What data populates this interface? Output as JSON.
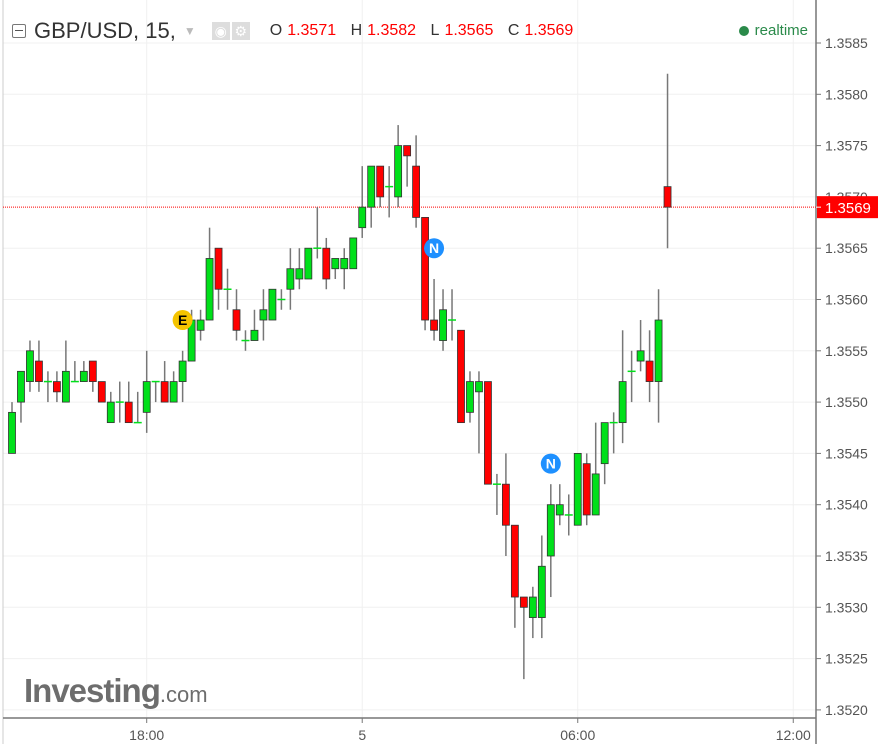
{
  "header": {
    "symbol": "GBP/USD, 15,",
    "o_label": "O",
    "o": "1.3571",
    "h_label": "H",
    "h": "1.3582",
    "l_label": "L",
    "l": "1.3565",
    "c_label": "C",
    "c": "1.3569",
    "status": "realtime"
  },
  "logo": {
    "name": "Investing",
    "suffix": ".com"
  },
  "colors": {
    "up": "#00e01a",
    "down": "#ff0000",
    "wick": "#777777",
    "current": "#ff0000",
    "status": "#2a8a4a"
  },
  "chart_data": {
    "type": "candlestick",
    "interval": "15",
    "ylim": [
      1.3519,
      1.3589
    ],
    "yticks": [
      "1.3520",
      "1.3525",
      "1.3530",
      "1.3535",
      "1.3540",
      "1.3545",
      "1.3550",
      "1.3555",
      "1.3560",
      "1.3565",
      "1.3570",
      "1.3575",
      "1.3580",
      "1.3585"
    ],
    "xticks": [
      {
        "label": "18:00",
        "t": "18:00"
      },
      {
        "label": "5",
        "t": "00:00"
      },
      {
        "label": "06:00",
        "t": "06:00"
      },
      {
        "label": "12:00",
        "t": "12:00"
      }
    ],
    "grid": true,
    "current_price": "1.3569",
    "markers": [
      {
        "label": "E",
        "t": "19:00",
        "price": 1.3558,
        "color": "#f5c400"
      },
      {
        "label": "N",
        "t": "02:00",
        "price": 1.3565,
        "color": "#1e90ff"
      },
      {
        "label": "N",
        "t": "05:15",
        "price": 1.3544,
        "color": "#1e90ff"
      }
    ],
    "candles_columns": [
      "time",
      "open",
      "high",
      "low",
      "close"
    ],
    "candles": [
      [
        "14:15",
        1.3545,
        1.355,
        1.3545,
        1.3549
      ],
      [
        "14:30",
        1.355,
        1.3553,
        1.3548,
        1.3553
      ],
      [
        "14:45",
        1.3552,
        1.3556,
        1.3551,
        1.3555
      ],
      [
        "15:00",
        1.3554,
        1.3556,
        1.3551,
        1.3552
      ],
      [
        "15:15",
        1.3552,
        1.3553,
        1.355,
        1.3552
      ],
      [
        "15:30",
        1.3552,
        1.3553,
        1.355,
        1.3551
      ],
      [
        "15:45",
        1.355,
        1.3556,
        1.355,
        1.3553
      ],
      [
        "16:00",
        1.3552,
        1.3554,
        1.3552,
        1.3552
      ],
      [
        "16:15",
        1.3552,
        1.3554,
        1.3552,
        1.3553
      ],
      [
        "16:30",
        1.3554,
        1.3554,
        1.3551,
        1.3552
      ],
      [
        "16:45",
        1.3552,
        1.3552,
        1.355,
        1.355
      ],
      [
        "17:00",
        1.3548,
        1.3551,
        1.3548,
        1.355
      ],
      [
        "17:15",
        1.355,
        1.3552,
        1.3548,
        1.355
      ],
      [
        "17:30",
        1.355,
        1.3552,
        1.3548,
        1.3548
      ],
      [
        "17:45",
        1.3548,
        1.3551,
        1.3548,
        1.3548
      ],
      [
        "18:00",
        1.3549,
        1.3555,
        1.3547,
        1.3552
      ],
      [
        "18:15",
        1.3552,
        1.3552,
        1.355,
        1.3552
      ],
      [
        "18:30",
        1.3552,
        1.3554,
        1.355,
        1.355
      ],
      [
        "18:45",
        1.355,
        1.3553,
        1.355,
        1.3552
      ],
      [
        "19:00",
        1.3552,
        1.3555,
        1.355,
        1.3554
      ],
      [
        "19:15",
        1.3554,
        1.3559,
        1.3554,
        1.3558
      ],
      [
        "19:30",
        1.3557,
        1.3559,
        1.3556,
        1.3558
      ],
      [
        "19:45",
        1.3558,
        1.3567,
        1.3558,
        1.3564
      ],
      [
        "20:00",
        1.3565,
        1.3565,
        1.3559,
        1.3561
      ],
      [
        "20:15",
        1.3561,
        1.3563,
        1.3559,
        1.3561
      ],
      [
        "20:30",
        1.3559,
        1.3561,
        1.3556,
        1.3557
      ],
      [
        "20:45",
        1.3556,
        1.3557,
        1.3555,
        1.3556
      ],
      [
        "21:00",
        1.3556,
        1.3559,
        1.3556,
        1.3557
      ],
      [
        "21:15",
        1.3558,
        1.3561,
        1.3556,
        1.3559
      ],
      [
        "21:30",
        1.3558,
        1.3561,
        1.3558,
        1.3561
      ],
      [
        "21:45",
        1.356,
        1.3561,
        1.3559,
        1.356
      ],
      [
        "22:00",
        1.3561,
        1.3565,
        1.3559,
        1.3563
      ],
      [
        "22:15",
        1.3562,
        1.3565,
        1.3561,
        1.3563
      ],
      [
        "22:30",
        1.3562,
        1.3565,
        1.3562,
        1.3565
      ],
      [
        "22:45",
        1.3565,
        1.3569,
        1.3564,
        1.3565
      ],
      [
        "23:00",
        1.3565,
        1.3566,
        1.3561,
        1.3562
      ],
      [
        "23:15",
        1.3563,
        1.3564,
        1.3562,
        1.3564
      ],
      [
        "23:30",
        1.3563,
        1.3565,
        1.3561,
        1.3564
      ],
      [
        "23:45",
        1.3563,
        1.3566,
        1.3563,
        1.3566
      ],
      [
        "00:00",
        1.3567,
        1.3573,
        1.3566,
        1.3569
      ],
      [
        "00:15",
        1.3569,
        1.3573,
        1.3567,
        1.3573
      ],
      [
        "00:30",
        1.3573,
        1.3573,
        1.3569,
        1.357
      ],
      [
        "00:45",
        1.3571,
        1.3573,
        1.3568,
        1.3571
      ],
      [
        "01:00",
        1.357,
        1.3577,
        1.3569,
        1.3575
      ],
      [
        "01:15",
        1.3575,
        1.3575,
        1.3571,
        1.3574
      ],
      [
        "01:30",
        1.3573,
        1.3576,
        1.3567,
        1.3568
      ],
      [
        "01:45",
        1.3568,
        1.3568,
        1.3557,
        1.3558
      ],
      [
        "02:00",
        1.3558,
        1.3562,
        1.3556,
        1.3557
      ],
      [
        "02:15",
        1.3556,
        1.3561,
        1.3555,
        1.3559
      ],
      [
        "02:30",
        1.3558,
        1.3561,
        1.3556,
        1.3558
      ],
      [
        "02:45",
        1.3557,
        1.3557,
        1.3548,
        1.3548
      ],
      [
        "03:00",
        1.3549,
        1.3553,
        1.3548,
        1.3552
      ],
      [
        "03:15",
        1.3551,
        1.3553,
        1.3545,
        1.3552
      ],
      [
        "03:30",
        1.3552,
        1.3552,
        1.3542,
        1.3542
      ],
      [
        "03:45",
        1.3542,
        1.3543,
        1.3539,
        1.3542
      ],
      [
        "04:00",
        1.3542,
        1.3545,
        1.3535,
        1.3538
      ],
      [
        "04:15",
        1.3538,
        1.3538,
        1.3528,
        1.3531
      ],
      [
        "04:30",
        1.3531,
        1.3531,
        1.3523,
        1.353
      ],
      [
        "04:45",
        1.3529,
        1.3532,
        1.3527,
        1.3531
      ],
      [
        "05:00",
        1.3529,
        1.3537,
        1.3527,
        1.3534
      ],
      [
        "05:15",
        1.3535,
        1.3542,
        1.3531,
        1.354
      ],
      [
        "05:30",
        1.3539,
        1.3542,
        1.3538,
        1.354
      ],
      [
        "05:45",
        1.3539,
        1.3541,
        1.3537,
        1.3539
      ],
      [
        "06:00",
        1.3538,
        1.3545,
        1.3538,
        1.3545
      ],
      [
        "06:15",
        1.3544,
        1.3545,
        1.3538,
        1.3539
      ],
      [
        "06:30",
        1.3539,
        1.3548,
        1.3539,
        1.3543
      ],
      [
        "06:45",
        1.3544,
        1.3548,
        1.3542,
        1.3548
      ],
      [
        "07:00",
        1.3548,
        1.3549,
        1.3545,
        1.3548
      ],
      [
        "07:15",
        1.3548,
        1.3557,
        1.3546,
        1.3552
      ],
      [
        "07:30",
        1.3553,
        1.3555,
        1.355,
        1.3553
      ],
      [
        "07:45",
        1.3554,
        1.3558,
        1.3553,
        1.3555
      ],
      [
        "08:00",
        1.3554,
        1.3557,
        1.355,
        1.3552
      ],
      [
        "08:15",
        1.3552,
        1.3561,
        1.3548,
        1.3558
      ],
      [
        "08:30",
        1.3571,
        1.3582,
        1.3565,
        1.3569
      ]
    ]
  }
}
